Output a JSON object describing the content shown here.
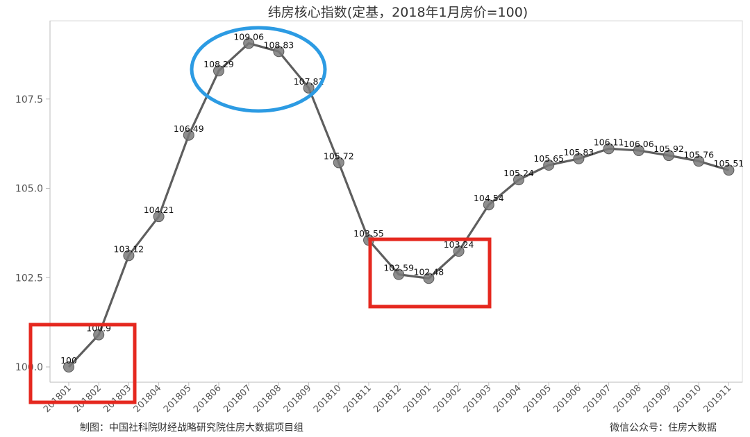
{
  "chart_data": {
    "type": "line",
    "title": "纬房核心指数(定基，2018年1月房价=100)",
    "x": [
      "201801",
      "201802",
      "201803",
      "201804",
      "201805",
      "201806",
      "201807",
      "201808",
      "201809",
      "201810",
      "201811",
      "201812",
      "201901",
      "201902",
      "201903",
      "201904",
      "201905",
      "201906",
      "201907",
      "201908",
      "201909",
      "201910",
      "201911"
    ],
    "series": [
      {
        "values": [
          100,
          100.9,
          103.12,
          104.21,
          106.49,
          108.29,
          109.06,
          108.83,
          107.81,
          105.72,
          103.55,
          102.59,
          102.48,
          103.24,
          104.54,
          105.24,
          105.65,
          105.83,
          106.11,
          106.06,
          105.92,
          105.76,
          105.51
        ],
        "labels": [
          "100",
          "100.9",
          "103.12",
          "104.21",
          "106.49",
          "108.29",
          "109.06",
          "108.83",
          "107.81",
          "105.72",
          "103.55",
          "102.59",
          "102.48",
          "103.24",
          "104.54",
          "105.24",
          "105.65",
          "105.83",
          "106.11",
          "106.06",
          "105.92",
          "105.76",
          "105.51"
        ]
      }
    ],
    "yticks": [
      "100.0",
      "102.5",
      "105.0",
      "107.5"
    ],
    "ylim": [
      99.7,
      109.6
    ],
    "xlabel": "",
    "ylabel": "",
    "grid": false,
    "colors": {
      "line": "#5e5e5e",
      "point": "#7a7a7a",
      "axis": "#bbbbbb",
      "highlight_ellipse": "#2c9be3",
      "highlight_rect": "#e5281f"
    },
    "annotations": [
      {
        "shape": "ellipse",
        "around": [
          "201806",
          "201807",
          "201808",
          "201809"
        ]
      },
      {
        "shape": "rectangle",
        "around": [
          "201801",
          "201802",
          "201803"
        ]
      },
      {
        "shape": "rectangle",
        "around": [
          "201811",
          "201812",
          "201901",
          "201902"
        ]
      }
    ]
  },
  "footer": {
    "left": "制图：中国社科院财经战略研究院住房大数据项目组",
    "right": "微信公众号：住房大数据"
  }
}
